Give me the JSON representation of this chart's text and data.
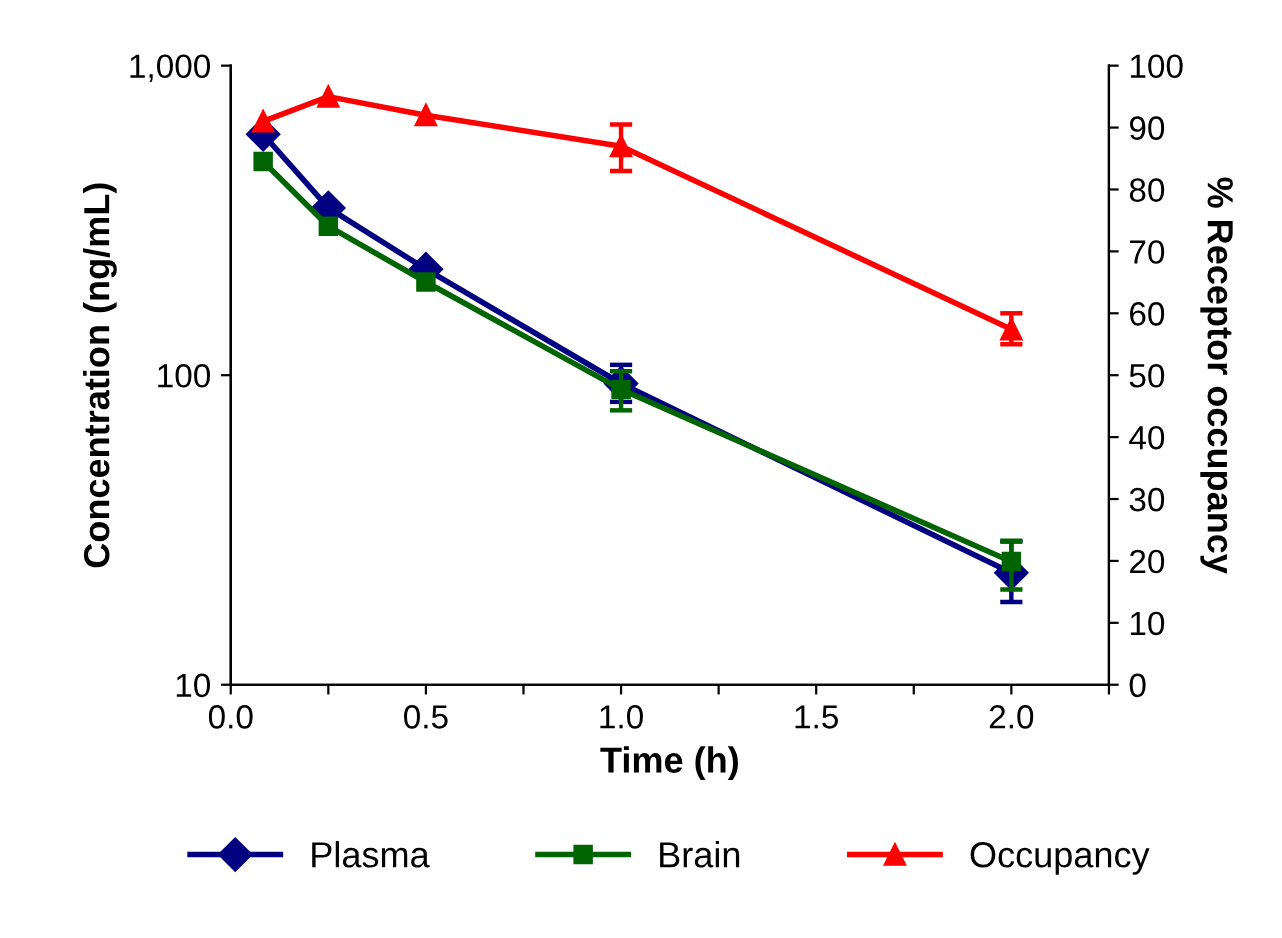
{
  "chart_data": {
    "type": "line",
    "xlabel": "Time (h)",
    "ylabel": "Concentration (ng/mL)",
    "y2label": "% Receptor occupancy",
    "x": [
      0.083,
      0.25,
      0.5,
      1.0,
      2.0
    ],
    "series": [
      {
        "name": "Plasma",
        "color": "#000080",
        "marker": "diamond",
        "values": [
          600,
          347,
          220,
          94,
          23
        ],
        "errors": [
          null,
          null,
          null,
          [
            82,
            108
          ],
          [
            18.5,
            29
          ]
        ]
      },
      {
        "name": "Brain",
        "color": "#006400",
        "marker": "square",
        "values": [
          490,
          303,
          200,
          90,
          25
        ],
        "errors": [
          null,
          null,
          null,
          [
            77,
            103
          ],
          [
            20.3,
            29.2
          ]
        ]
      },
      {
        "name": "Occupancy",
        "color": "#ff0000",
        "marker": "triangle",
        "axis": "y2",
        "values": [
          91,
          95,
          92,
          87,
          57.4
        ],
        "errors": [
          null,
          null,
          null,
          [
            83,
            90.5
          ],
          [
            55,
            60
          ]
        ]
      }
    ],
    "log": "y",
    "xlim": [
      0,
      2.25
    ],
    "xticks": [
      {
        "value": 0,
        "label": "0.0"
      },
      {
        "value": 0.25,
        "label": null
      },
      0.5,
      {
        "value": 0.75,
        "label": null
      },
      {
        "value": 1,
        "label": "1.0"
      },
      {
        "value": 1.25,
        "label": null
      },
      1.5,
      {
        "value": 1.75,
        "label": null
      },
      {
        "value": 2,
        "label": "2.0"
      },
      {
        "value": 2.25,
        "label": null
      }
    ],
    "ylim": [
      10,
      1000
    ],
    "yticks": [
      10,
      100,
      {
        "value": 1000,
        "label": "1,000"
      }
    ],
    "y2lim": [
      0,
      100
    ],
    "y2ticks": [
      0,
      10,
      20,
      30,
      40,
      50,
      60,
      70,
      80,
      90,
      100
    ],
    "grid": false,
    "legend": "bottom"
  }
}
